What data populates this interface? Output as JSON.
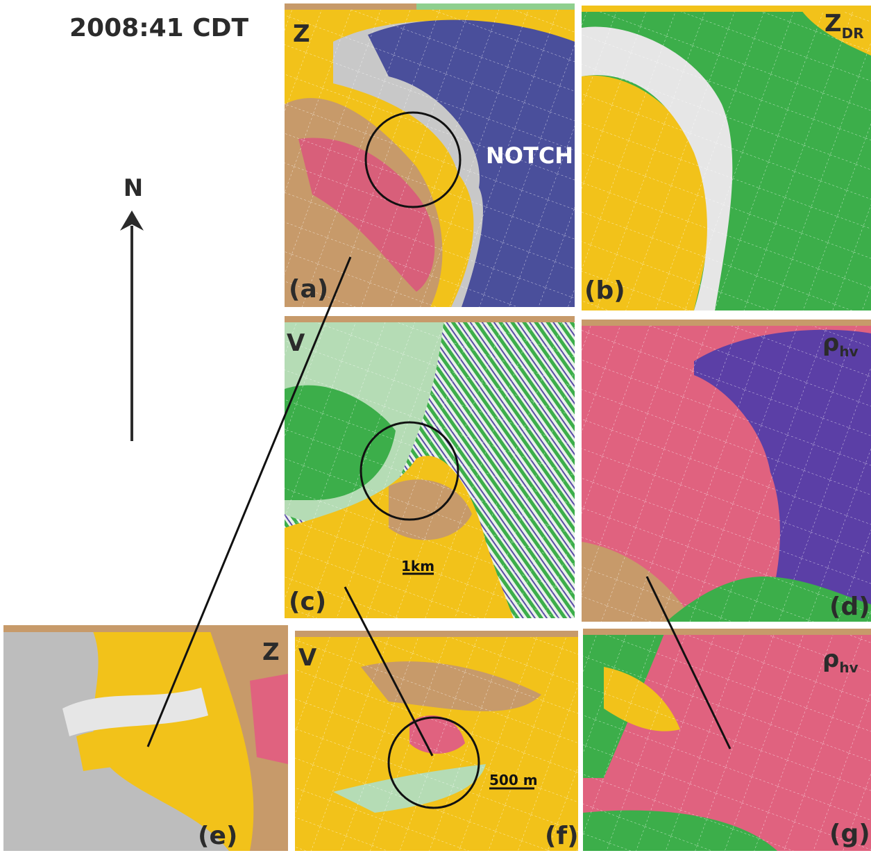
{
  "header": {
    "time": "2008:41 CDT",
    "north": "N"
  },
  "panels": [
    {
      "letter": "(a)",
      "variable": "Z",
      "annotation": "NOTCH"
    },
    {
      "letter": "(b)",
      "variable": {
        "main": "Z",
        "sub": "DR"
      }
    },
    {
      "letter": "(c)",
      "variable": "V",
      "annotation": "1km"
    },
    {
      "letter": "(d)",
      "variable": {
        "main": "ρ",
        "sub": "hv"
      }
    },
    {
      "letter": "(e)",
      "variable": "Z"
    },
    {
      "letter": "(f)",
      "variable": "V",
      "annotation": "500 m"
    },
    {
      "letter": "(g)",
      "variable": {
        "main": "ρ",
        "sub": "hv"
      }
    }
  ]
}
